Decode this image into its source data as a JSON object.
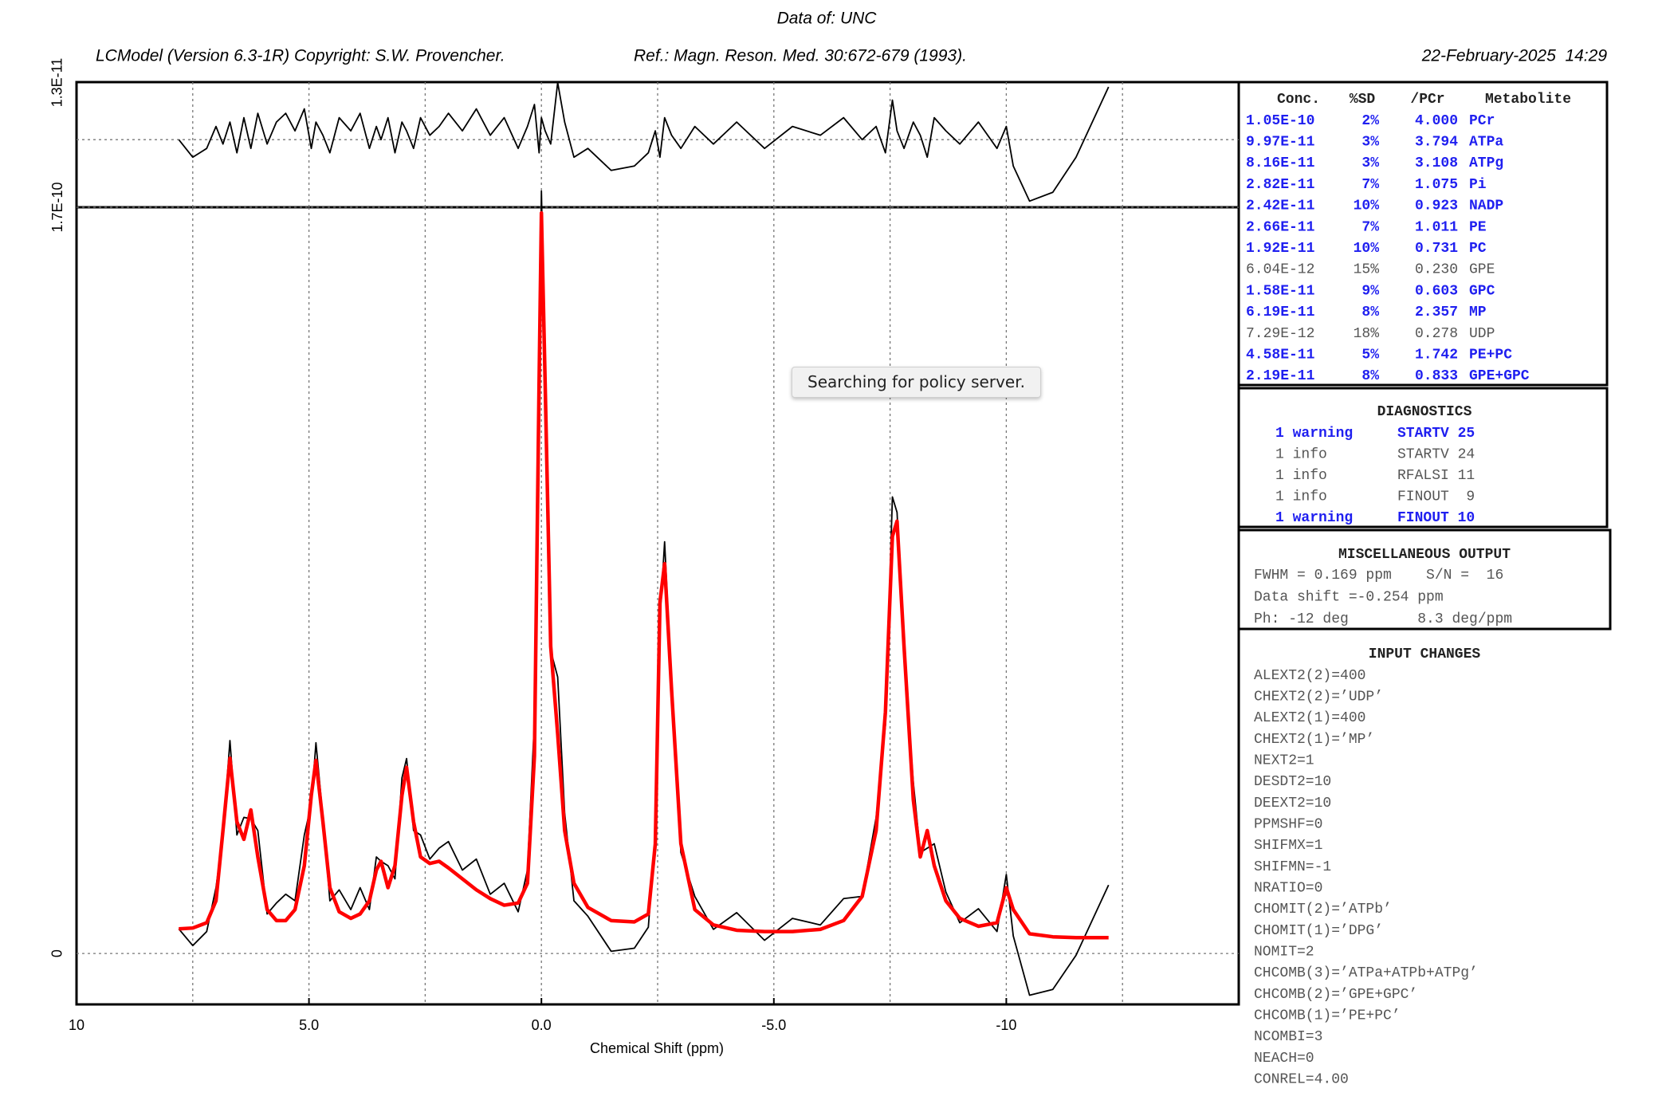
{
  "header": {
    "data_of": "Data of: UNC",
    "copyright": "LCModel (Version 6.3-1R) Copyright: S.W. Provencher.",
    "reference": "Ref.: Magn. Reson. Med. 30:672-679 (1993).",
    "date": "22-February-2025  14:29"
  },
  "tooltip": "Searching for policy server.",
  "chart_data": [
    {
      "type": "line",
      "x": [
        7.8,
        7.5,
        7.2,
        7.0,
        6.85,
        6.7,
        6.55,
        6.4,
        6.25,
        6.1,
        5.9,
        5.7,
        5.5,
        5.3,
        5.1,
        4.95,
        4.85,
        4.7,
        4.55,
        4.35,
        4.1,
        3.9,
        3.7,
        3.55,
        3.45,
        3.3,
        3.15,
        3.0,
        2.9,
        2.75,
        2.6,
        2.4,
        2.2,
        2.0,
        1.7,
        1.4,
        1.1,
        0.8,
        0.5,
        0.3,
        0.15,
        0.05,
        0.0,
        -0.08,
        -0.2,
        -0.35,
        -0.5,
        -0.7,
        -1.0,
        -1.5,
        -2.0,
        -2.3,
        -2.45,
        -2.55,
        -2.65,
        -2.8,
        -3.0,
        -3.3,
        -3.7,
        -4.2,
        -4.8,
        -5.4,
        -6.0,
        -6.5,
        -6.9,
        -7.2,
        -7.4,
        -7.55,
        -7.65,
        -7.8,
        -8.0,
        -8.15,
        -8.3,
        -8.45,
        -8.7,
        -9.0,
        -9.4,
        -9.8,
        -10.0,
        -10.15,
        -10.5,
        -11.0,
        -11.5,
        -12.2
      ],
      "xlim": [
        10,
        -15
      ],
      "ylim": [
        -1.54e-11,
        1.31e-11
      ],
      "yticks": [
        {
          "value": 1.3e-11,
          "label": "1.3E-11"
        }
      ],
      "xgrid": [
        7.5,
        5,
        2.5,
        0,
        -2.5,
        -5,
        -7.5,
        -10,
        -12.5
      ],
      "series": [
        {
          "color": "#000000",
          "values": [
            0,
            -4e-12,
            -2e-12,
            3e-12,
            -1e-12,
            4e-12,
            -3e-12,
            5e-12,
            -2e-12,
            6e-12,
            -1e-12,
            4e-12,
            6e-12,
            2e-12,
            7e-12,
            -2e-12,
            4e-12,
            1e-12,
            -3e-12,
            5e-12,
            2e-12,
            6e-12,
            -2e-12,
            3e-12,
            0,
            5e-12,
            -3e-12,
            4e-12,
            2e-12,
            -2e-12,
            5e-12,
            1e-12,
            3e-12,
            6e-12,
            2e-12,
            7e-12,
            1e-12,
            5e-12,
            -2e-12,
            3e-12,
            8e-12,
            -3e-12,
            5e-12,
            2e-12,
            -1e-12,
            1.3e-11,
            4e-12,
            -4e-12,
            -2e-12,
            -7e-12,
            -6e-12,
            -3e-12,
            2e-12,
            -4e-12,
            5e-12,
            1e-12,
            -2e-12,
            3e-12,
            -1e-12,
            4e-12,
            -2e-12,
            3e-12,
            1e-12,
            5e-12,
            0,
            3e-12,
            -3e-12,
            9e-12,
            2e-12,
            -2e-12,
            4e-12,
            1e-12,
            -4e-12,
            5e-12,
            2e-12,
            -1e-12,
            4e-12,
            -2e-12,
            3e-12,
            -6e-12,
            -1.4e-11,
            -1.2e-11,
            -4e-12,
            1.2e-11
          ]
        }
      ]
    },
    {
      "type": "line",
      "x_label": "Chemical Shift (ppm)",
      "x": [
        7.8,
        7.5,
        7.2,
        7.0,
        6.85,
        6.7,
        6.55,
        6.4,
        6.25,
        6.1,
        5.9,
        5.7,
        5.5,
        5.3,
        5.1,
        4.95,
        4.85,
        4.7,
        4.55,
        4.35,
        4.1,
        3.9,
        3.7,
        3.55,
        3.45,
        3.3,
        3.15,
        3.0,
        2.9,
        2.75,
        2.6,
        2.4,
        2.2,
        2.0,
        1.7,
        1.4,
        1.1,
        0.8,
        0.5,
        0.3,
        0.15,
        0.05,
        0.0,
        -0.08,
        -0.2,
        -0.35,
        -0.5,
        -0.7,
        -1.0,
        -1.5,
        -2.0,
        -2.3,
        -2.45,
        -2.55,
        -2.65,
        -2.8,
        -3.0,
        -3.3,
        -3.7,
        -4.2,
        -4.8,
        -5.4,
        -6.0,
        -6.5,
        -6.9,
        -7.2,
        -7.4,
        -7.55,
        -7.65,
        -7.8,
        -8.0,
        -8.15,
        -8.3,
        -8.45,
        -8.7,
        -9.0,
        -9.4,
        -9.8,
        -10.0,
        -10.15,
        -10.5,
        -11.0,
        -11.5,
        -12.2
      ],
      "xlim": [
        10,
        -15
      ],
      "ylim": [
        -1.16e-11,
        1.7e-10
      ],
      "xticks": [
        10,
        {
          "value": 5,
          "label": "5.0"
        },
        {
          "value": 0,
          "label": "0.0"
        },
        {
          "value": -5,
          "label": "-5.0"
        },
        -10
      ],
      "yticks": [
        0,
        {
          "value": 1.7e-10,
          "label": "1.7E-10"
        }
      ],
      "xgrid": [
        7.5,
        5,
        2.5,
        0,
        -2.5,
        -5,
        -7.5,
        -10,
        -12.5
      ],
      "grid": true,
      "series": [
        {
          "color": "#000000",
          "values": [
            5.6e-12,
            1.8e-12,
            5e-12,
            1.5e-11,
            2.7e-11,
            4.85e-11,
            2.7e-11,
            3.1e-11,
            3.07e-11,
            2.8e-11,
            9e-12,
            1.15e-11,
            1.35e-11,
            1.2e-11,
            2.7e-11,
            3.4e-11,
            4.8e-11,
            3.1e-11,
            1.2e-11,
            1.45e-11,
            1e-11,
            1.5e-11,
            1e-11,
            2.2e-11,
            2.1e-11,
            2e-11,
            1.7e-11,
            4e-11,
            4.44e-11,
            2.8e-11,
            2.7e-11,
            2.15e-11,
            2.4e-11,
            2.55e-11,
            1.9e-11,
            2.15e-11,
            1.35e-11,
            1.6e-11,
            9.5e-12,
            1.9e-11,
            5.3e-11,
            1.27e-10,
            1.737e-10,
            1.32e-10,
            6.9e-11,
            6.3e-11,
            3.2e-11,
            1.2e-11,
            8.5e-12,
            5e-13,
            1.2e-12,
            6e-12,
            2.7e-11,
            7.6e-11,
            9.38e-11,
            6.1e-11,
            2.3e-11,
            1.3e-11,
            5.5e-12,
            9.3e-12,
            3e-12,
            8e-12,
            6.5e-12,
            1.25e-11,
            1.3e-11,
            3.1e-11,
            5.2e-11,
            1.04e-10,
            1.005e-10,
            6.8e-11,
            3.9e-11,
            2.3e-11,
            2.4e-11,
            2.5e-11,
            1.4e-11,
            7e-12,
            1.02e-11,
            5e-12,
            1.8e-11,
            4e-12,
            -9.5e-12,
            -8.2e-12,
            -4e-13,
            1.56e-11
          ]
        },
        {
          "color": "#ff0000",
          "values": [
            5.6e-12,
            5.8e-12,
            7e-12,
            1.2e-11,
            2.8e-11,
            4.45e-11,
            3e-11,
            2.6e-11,
            3.27e-11,
            2.2e-11,
            1e-11,
            7.5e-12,
            7.5e-12,
            1e-11,
            2e-11,
            3.6e-11,
            4.4e-11,
            3e-11,
            1.5e-11,
            9.5e-12,
            8e-12,
            9e-12,
            1.2e-11,
            1.9e-11,
            2.1e-11,
            1.5e-11,
            2e-11,
            3.6e-11,
            4.24e-11,
            3e-11,
            2.2e-11,
            2.05e-11,
            2.1e-11,
            1.95e-11,
            1.7e-11,
            1.45e-11,
            1.25e-11,
            1.1e-11,
            1.15e-11,
            1.6e-11,
            4.5e-11,
            1.3e-10,
            1.687e-10,
            1.3e-10,
            7e-11,
            5e-11,
            2.8e-11,
            1.6e-11,
            1.05e-11,
            7.5e-12,
            7.2e-12,
            9e-12,
            2.5e-11,
            8e-11,
            8.88e-11,
            6e-11,
            2.5e-11,
            1e-11,
            6.5e-12,
            5.3e-12,
            5e-12,
            5e-12,
            5.5e-12,
            7.5e-12,
            1.3e-11,
            2.8e-11,
            5.5e-11,
            9.5e-11,
            9.85e-11,
            7e-11,
            3.5e-11,
            2.2e-11,
            2.8e-11,
            2e-11,
            1.2e-11,
            8e-12,
            6.2e-12,
            7e-12,
            1.5e-11,
            1e-11,
            4.5e-12,
            3.8e-12,
            3.6e-12,
            3.6e-12
          ]
        }
      ]
    }
  ],
  "metabolites": {
    "header": [
      "Conc.",
      "%SD",
      "/PCr",
      "Metabolite"
    ],
    "rows": [
      [
        "1.05E-10",
        "2%",
        "4.000",
        "PCr"
      ],
      [
        "9.97E-11",
        "3%",
        "3.794",
        "ATPa"
      ],
      [
        "8.16E-11",
        "3%",
        "3.108",
        "ATPg"
      ],
      [
        "2.82E-11",
        "7%",
        "1.075",
        "Pi"
      ],
      [
        "2.42E-11",
        "10%",
        "0.923",
        "NADP"
      ],
      [
        "2.66E-11",
        "7%",
        "1.011",
        "PE"
      ],
      [
        "1.92E-11",
        "10%",
        "0.731",
        "PC"
      ],
      [
        "6.04E-12",
        "15%",
        "0.230",
        "GPE"
      ],
      [
        "1.58E-11",
        "9%",
        "0.603",
        "GPC"
      ],
      [
        "6.19E-11",
        "8%",
        "2.357",
        "MP"
      ],
      [
        "7.29E-12",
        "18%",
        "0.278",
        "UDP"
      ],
      [
        "4.58E-11",
        "5%",
        "1.742",
        "PE+PC"
      ],
      [
        "2.19E-11",
        "8%",
        "0.833",
        "GPE+GPC"
      ]
    ],
    "row_styles": [
      "highlight",
      "highlight",
      "highlight",
      "highlight",
      "highlight",
      "highlight",
      "highlight",
      "plain",
      "highlight",
      "highlight",
      "plain",
      "highlight",
      "highlight"
    ]
  },
  "diagnostics": {
    "title": "DIAGNOSTICS",
    "rows": [
      [
        "1 warning",
        "STARTV 25"
      ],
      [
        "1 info",
        "STARTV 24"
      ],
      [
        "1 info",
        "RFALSI 11"
      ],
      [
        "1 info",
        "FINOUT  9"
      ],
      [
        "1 warning",
        "FINOUT 10"
      ]
    ],
    "row_styles": [
      "highlight",
      "plain",
      "plain",
      "plain",
      "highlight"
    ]
  },
  "misc": {
    "title": "MISCELLANEOUS OUTPUT",
    "lines": [
      "FWHM = 0.169 ppm    S/N =  16",
      "Data shift =-0.254 ppm",
      "Ph: -12 deg        8.3 deg/ppm"
    ]
  },
  "input_changes": {
    "title": "INPUT CHANGES",
    "lines": [
      "ALEXT2(2)=400",
      "CHEXT2(2)=’UDP’",
      "ALEXT2(1)=400",
      "CHEXT2(1)=’MP’",
      "NEXT2=1",
      "DESDT2=10",
      "DEEXT2=10",
      "PPMSHF=0",
      "SHIFMX=1",
      "SHIFMN=-1",
      "NRATIO=0",
      "CHOMIT(2)=’ATPb’",
      "CHOMIT(1)=’DPG’",
      "NOMIT=2",
      "CHCOMB(3)=’ATPa+ATPb+ATPg’",
      "CHCOMB(2)=’GPE+GPC’",
      "CHCOMB(1)=’PE+PC’",
      "NCOMBI=3",
      "NEACH=0",
      "CONREL=4.00"
    ]
  }
}
